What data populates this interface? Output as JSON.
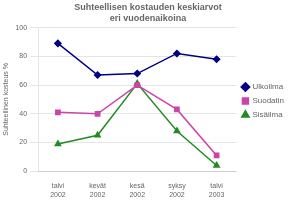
{
  "chart_data": {
    "type": "line",
    "title": "Suhteellisen kostauden keskiarvot\neri vuodenaikoina",
    "ylabel": "Suhteellinen kosteus %",
    "categories": [
      "talvi\n2002",
      "kevät\n2002",
      "kesä\n2002",
      "syksy\n2002",
      "talvi\n2003"
    ],
    "series": [
      {
        "name": "Ulkoilma",
        "color": "#000080",
        "marker": "diamond",
        "values": [
          89,
          67,
          68,
          82,
          78
        ]
      },
      {
        "name": "Suodatin",
        "color": "#CC44AA",
        "marker": "square",
        "values": [
          41,
          40,
          60,
          43,
          11
        ]
      },
      {
        "name": "Sisäilma",
        "color": "#228B22",
        "marker": "triangle",
        "values": [
          19,
          25,
          61,
          28,
          4
        ]
      }
    ],
    "ylim": [
      0,
      100
    ],
    "yticks": [
      0,
      20,
      40,
      60,
      80,
      100
    ],
    "grid": true,
    "legend": "right"
  }
}
